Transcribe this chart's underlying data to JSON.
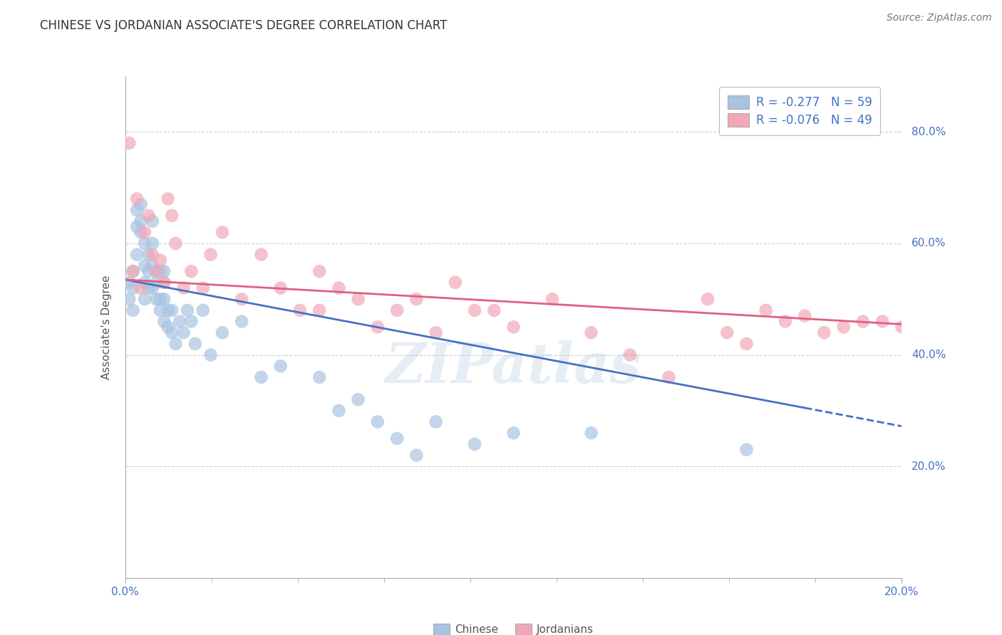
{
  "title": "CHINESE VS JORDANIAN ASSOCIATE'S DEGREE CORRELATION CHART",
  "source": "Source: ZipAtlas.com",
  "ylabel": "Associate's Degree",
  "y_tick_labels": [
    "80.0%",
    "60.0%",
    "40.0%",
    "20.0%"
  ],
  "y_tick_positions": [
    0.8,
    0.6,
    0.4,
    0.2
  ],
  "xlim": [
    0.0,
    0.2
  ],
  "ylim": [
    0.0,
    0.9
  ],
  "legend_text_1": "R = -0.277   N = 59",
  "legend_text_2": "R = -0.076   N = 49",
  "chinese_color": "#a8c4e0",
  "jordanian_color": "#f0a8b8",
  "chinese_line_color": "#4472c4",
  "jordanian_line_color": "#e06080",
  "watermark": "ZIPatlas",
  "chinese_x": [
    0.001,
    0.001,
    0.002,
    0.002,
    0.002,
    0.003,
    0.003,
    0.003,
    0.004,
    0.004,
    0.004,
    0.005,
    0.005,
    0.005,
    0.005,
    0.006,
    0.006,
    0.006,
    0.007,
    0.007,
    0.007,
    0.007,
    0.008,
    0.008,
    0.008,
    0.009,
    0.009,
    0.009,
    0.01,
    0.01,
    0.01,
    0.01,
    0.011,
    0.011,
    0.012,
    0.012,
    0.013,
    0.014,
    0.015,
    0.016,
    0.017,
    0.018,
    0.02,
    0.022,
    0.025,
    0.03,
    0.035,
    0.04,
    0.05,
    0.055,
    0.06,
    0.065,
    0.07,
    0.075,
    0.08,
    0.09,
    0.1,
    0.12,
    0.16
  ],
  "chinese_y": [
    0.5,
    0.53,
    0.52,
    0.55,
    0.48,
    0.63,
    0.66,
    0.58,
    0.64,
    0.62,
    0.67,
    0.5,
    0.53,
    0.6,
    0.56,
    0.52,
    0.55,
    0.58,
    0.52,
    0.56,
    0.6,
    0.64,
    0.5,
    0.53,
    0.55,
    0.48,
    0.5,
    0.55,
    0.46,
    0.5,
    0.53,
    0.55,
    0.45,
    0.48,
    0.44,
    0.48,
    0.42,
    0.46,
    0.44,
    0.48,
    0.46,
    0.42,
    0.48,
    0.4,
    0.44,
    0.46,
    0.36,
    0.38,
    0.36,
    0.3,
    0.32,
    0.28,
    0.25,
    0.22,
    0.28,
    0.24,
    0.26,
    0.26,
    0.23
  ],
  "jordanian_x": [
    0.001,
    0.002,
    0.003,
    0.004,
    0.005,
    0.006,
    0.007,
    0.008,
    0.009,
    0.01,
    0.011,
    0.012,
    0.013,
    0.015,
    0.017,
    0.02,
    0.022,
    0.025,
    0.03,
    0.035,
    0.04,
    0.045,
    0.05,
    0.055,
    0.06,
    0.065,
    0.07,
    0.08,
    0.09,
    0.1,
    0.11,
    0.12,
    0.13,
    0.14,
    0.15,
    0.16,
    0.17,
    0.175,
    0.18,
    0.185,
    0.19,
    0.195,
    0.2,
    0.05,
    0.075,
    0.085,
    0.095,
    0.155,
    0.165
  ],
  "jordanian_y": [
    0.78,
    0.55,
    0.68,
    0.52,
    0.62,
    0.65,
    0.58,
    0.55,
    0.57,
    0.53,
    0.68,
    0.65,
    0.6,
    0.52,
    0.55,
    0.52,
    0.58,
    0.62,
    0.5,
    0.58,
    0.52,
    0.48,
    0.55,
    0.52,
    0.5,
    0.45,
    0.48,
    0.44,
    0.48,
    0.45,
    0.5,
    0.44,
    0.4,
    0.36,
    0.5,
    0.42,
    0.46,
    0.47,
    0.44,
    0.45,
    0.46,
    0.46,
    0.45,
    0.48,
    0.5,
    0.53,
    0.48,
    0.44,
    0.48
  ],
  "background_color": "#ffffff",
  "grid_color": "#cccccc",
  "chinese_line_x0": 0.0,
  "chinese_line_y0": 0.535,
  "chinese_line_x1": 0.175,
  "chinese_line_y1": 0.305,
  "chinese_line_dash_x0": 0.175,
  "chinese_line_dash_y0": 0.305,
  "chinese_line_dash_x1": 0.2,
  "chinese_line_dash_y1": 0.272,
  "jordanian_line_x0": 0.0,
  "jordanian_line_y0": 0.535,
  "jordanian_line_x1": 0.2,
  "jordanian_line_y1": 0.455
}
